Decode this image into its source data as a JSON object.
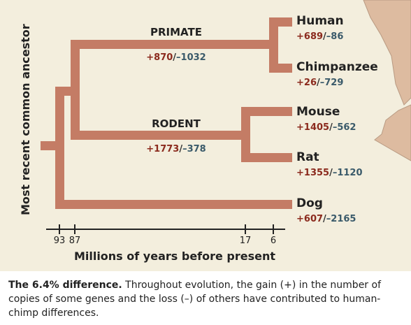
{
  "yaxis_label": "Most recent common ancestor",
  "xaxis_label": "Millions of years before present",
  "ticks": [
    {
      "label": "93",
      "value": 93
    },
    {
      "label": "87",
      "value": 87
    },
    {
      "label": "17",
      "value": 17
    },
    {
      "label": "6",
      "value": 6
    }
  ],
  "branches": {
    "primate": {
      "label": "PRIMATE",
      "gain": "+870",
      "loss": "–1032"
    },
    "rodent": {
      "label": "RODENT",
      "gain": "+1773",
      "loss": "–378"
    }
  },
  "tips": {
    "human": {
      "name": "Human",
      "gain": "+689",
      "loss": "–86"
    },
    "chimp": {
      "name": "Chimpanzee",
      "gain": "+26",
      "loss": "–729"
    },
    "mouse": {
      "name": "Mouse",
      "gain": "+1405",
      "loss": "–562"
    },
    "rat": {
      "name": "Rat",
      "gain": "+1355",
      "loss": "–1120"
    },
    "dog": {
      "name": "Dog",
      "gain": "+607",
      "loss": "–2165"
    }
  },
  "separator": "/",
  "caption": {
    "title": "The 6.4% difference.",
    "body": " Throughout evolution, the gain (+) in the number of copies of some genes and the loss (–) of others have contributed to human-chimp differences."
  },
  "colors": {
    "branch": "#c47c65",
    "gain": "#8b2a1d",
    "loss": "#3a5a6a",
    "background": "#f3eedd",
    "silhouette": "#ddbba0"
  }
}
